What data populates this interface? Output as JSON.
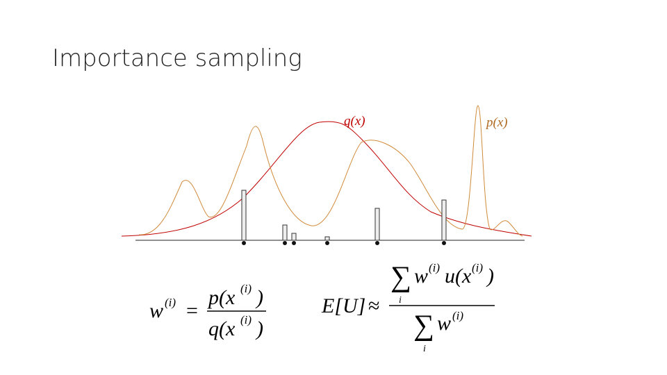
{
  "title": "Importance sampling",
  "curve_labels": {
    "q": "q(x)",
    "p": "p(x)"
  },
  "weight_formula": {
    "lhs": "w",
    "lhs_sup": "(i)",
    "equals": "=",
    "numerator": "p(x",
    "numerator_sup": "(i)",
    "numerator_close": ")",
    "denominator": "q(x",
    "denominator_sup": "(i)",
    "denominator_close": ")"
  },
  "expectation_formula": {
    "lhs": "E[U]",
    "approx": "≈",
    "num_sum": "∑",
    "num_sum_index": "i",
    "num_w": "w",
    "num_w_sup": "(i)",
    "num_u": "u(x",
    "num_u_sup": "(i)",
    "num_close": ")",
    "den_sum": "∑",
    "den_sum_index": "i",
    "den_w": "w",
    "den_w_sup": "(i)"
  }
}
